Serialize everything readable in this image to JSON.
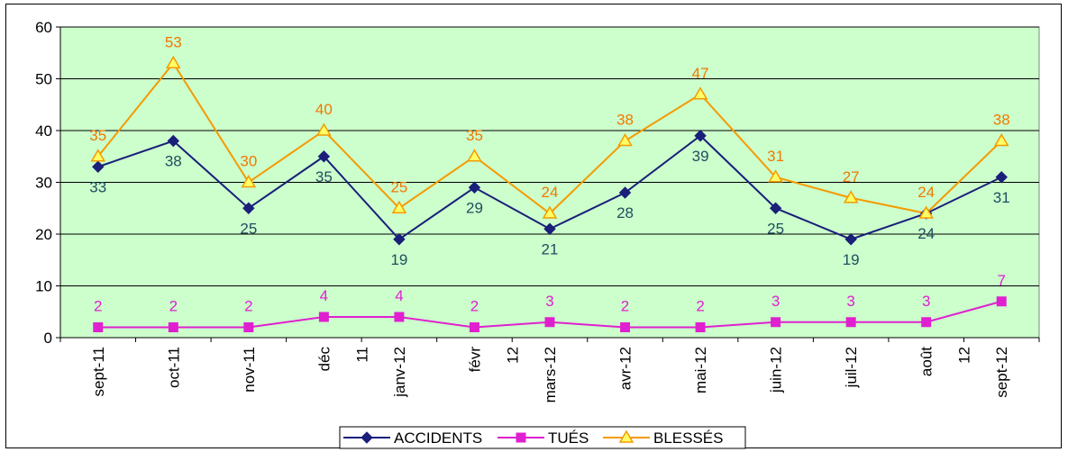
{
  "chart_data": {
    "type": "line",
    "categories": [
      "sept-11",
      "oct-11",
      "nov-11",
      "déc-11",
      "janv-12",
      "févr-12",
      "mars-12",
      "avr-12",
      "mai-12",
      "juin-12",
      "juil-12",
      "août-12",
      "sept-12"
    ],
    "category_labels": [
      {
        "line1": "sept-11"
      },
      {
        "line1": "oct-11"
      },
      {
        "line1": "nov-11"
      },
      {
        "line1": "déc",
        "line2": "11"
      },
      {
        "line1": "janv-12"
      },
      {
        "line1": "févr",
        "line2": "12"
      },
      {
        "line1": "mars-12"
      },
      {
        "line1": "avr-12"
      },
      {
        "line1": "mai-12"
      },
      {
        "line1": "juin-12"
      },
      {
        "line1": "juil-12"
      },
      {
        "line1": "août",
        "line2": "12"
      },
      {
        "line1": "sept-12"
      }
    ],
    "series": [
      {
        "name": "ACCIDENTS",
        "values": [
          33,
          38,
          25,
          35,
          19,
          29,
          21,
          28,
          39,
          25,
          19,
          24,
          31
        ],
        "color": "#1a1f7a",
        "label_color": "#1f4e5f",
        "marker": "diamond",
        "label_position": "below"
      },
      {
        "name": "TUÉS",
        "values": [
          2,
          2,
          2,
          4,
          4,
          2,
          3,
          2,
          2,
          3,
          3,
          3,
          7
        ],
        "color": "#e020d0",
        "label_color": "#e020d0",
        "marker": "square",
        "label_position": "above"
      },
      {
        "name": "BLESSÉS",
        "values": [
          35,
          53,
          30,
          40,
          25,
          35,
          24,
          38,
          47,
          31,
          27,
          24,
          38
        ],
        "color": "#f59a00",
        "label_color": "#f07800",
        "marker": "triangle",
        "label_position": "above"
      }
    ],
    "y_ticks": [
      "0",
      "10",
      "20",
      "30",
      "40",
      "50",
      "60"
    ],
    "ylim": [
      0,
      60
    ],
    "grid": true,
    "legend_position": "bottom",
    "plot_background": "#ccffcc"
  }
}
